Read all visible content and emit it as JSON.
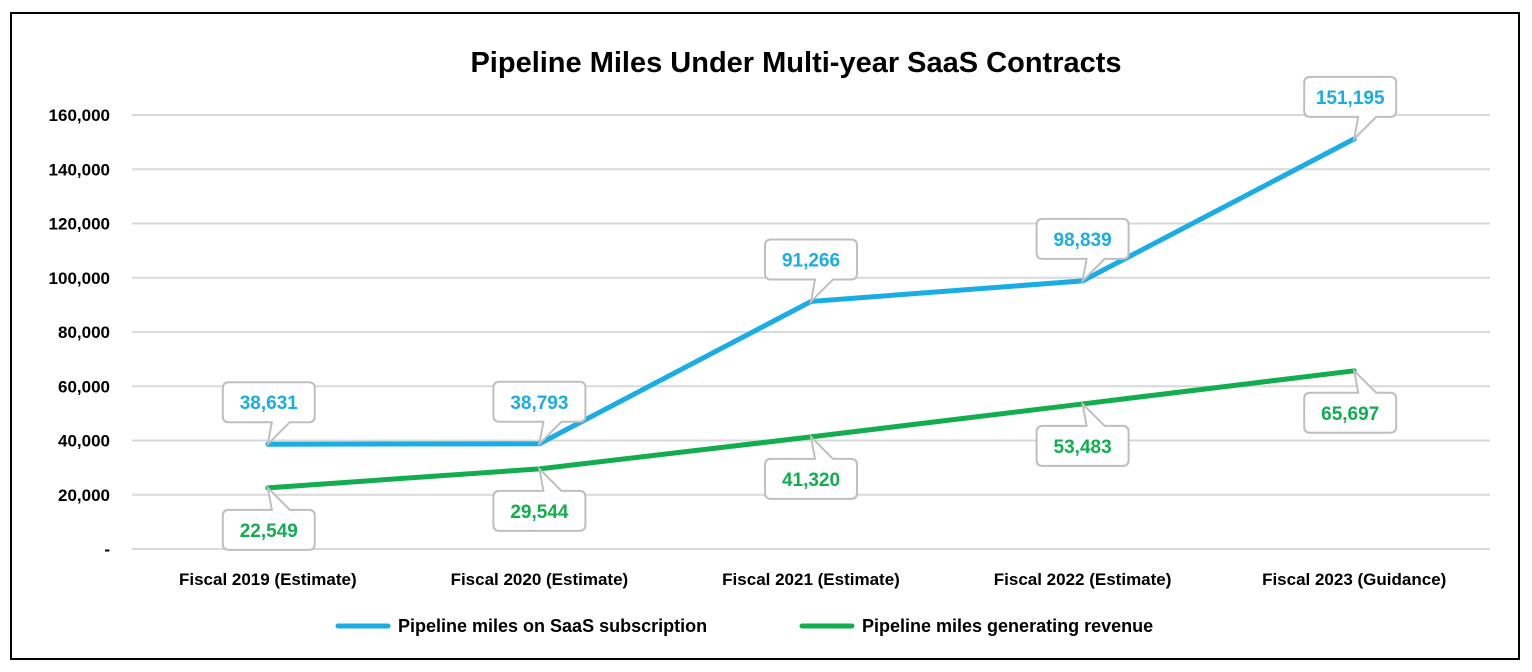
{
  "chart_data": {
    "type": "line",
    "title": "Pipeline Miles Under Multi-year SaaS Contracts",
    "xlabel": "",
    "ylabel": "",
    "categories": [
      "Fiscal 2019 (Estimate)",
      "Fiscal 2020 (Estimate)",
      "Fiscal 2021 (Estimate)",
      "Fiscal 2022 (Estimate)",
      "Fiscal 2023 (Guidance)"
    ],
    "ylim": [
      0,
      160000
    ],
    "y_ticks": [
      0,
      20000,
      40000,
      60000,
      80000,
      100000,
      120000,
      140000,
      160000
    ],
    "y_tick_labels": [
      "-",
      "20,000",
      "40,000",
      "60,000",
      "80,000",
      "100,000",
      "120,000",
      "140,000",
      "160,000"
    ],
    "grid": true,
    "legend_position": "bottom",
    "series": [
      {
        "name": "Pipeline miles on SaaS subscription",
        "color": "#1AADE4",
        "values": [
          38631,
          38793,
          91266,
          98839,
          151195
        ],
        "labels": [
          "38,631",
          "38,793",
          "91,266",
          "98,839",
          "151,195"
        ],
        "label_position": "above"
      },
      {
        "name": "Pipeline miles generating revenue",
        "color": "#12AD4E",
        "values": [
          22549,
          29544,
          41320,
          53483,
          65697
        ],
        "labels": [
          "22,549",
          "29,544",
          "41,320",
          "53,483",
          "65,697"
        ],
        "label_position": "below"
      }
    ]
  }
}
